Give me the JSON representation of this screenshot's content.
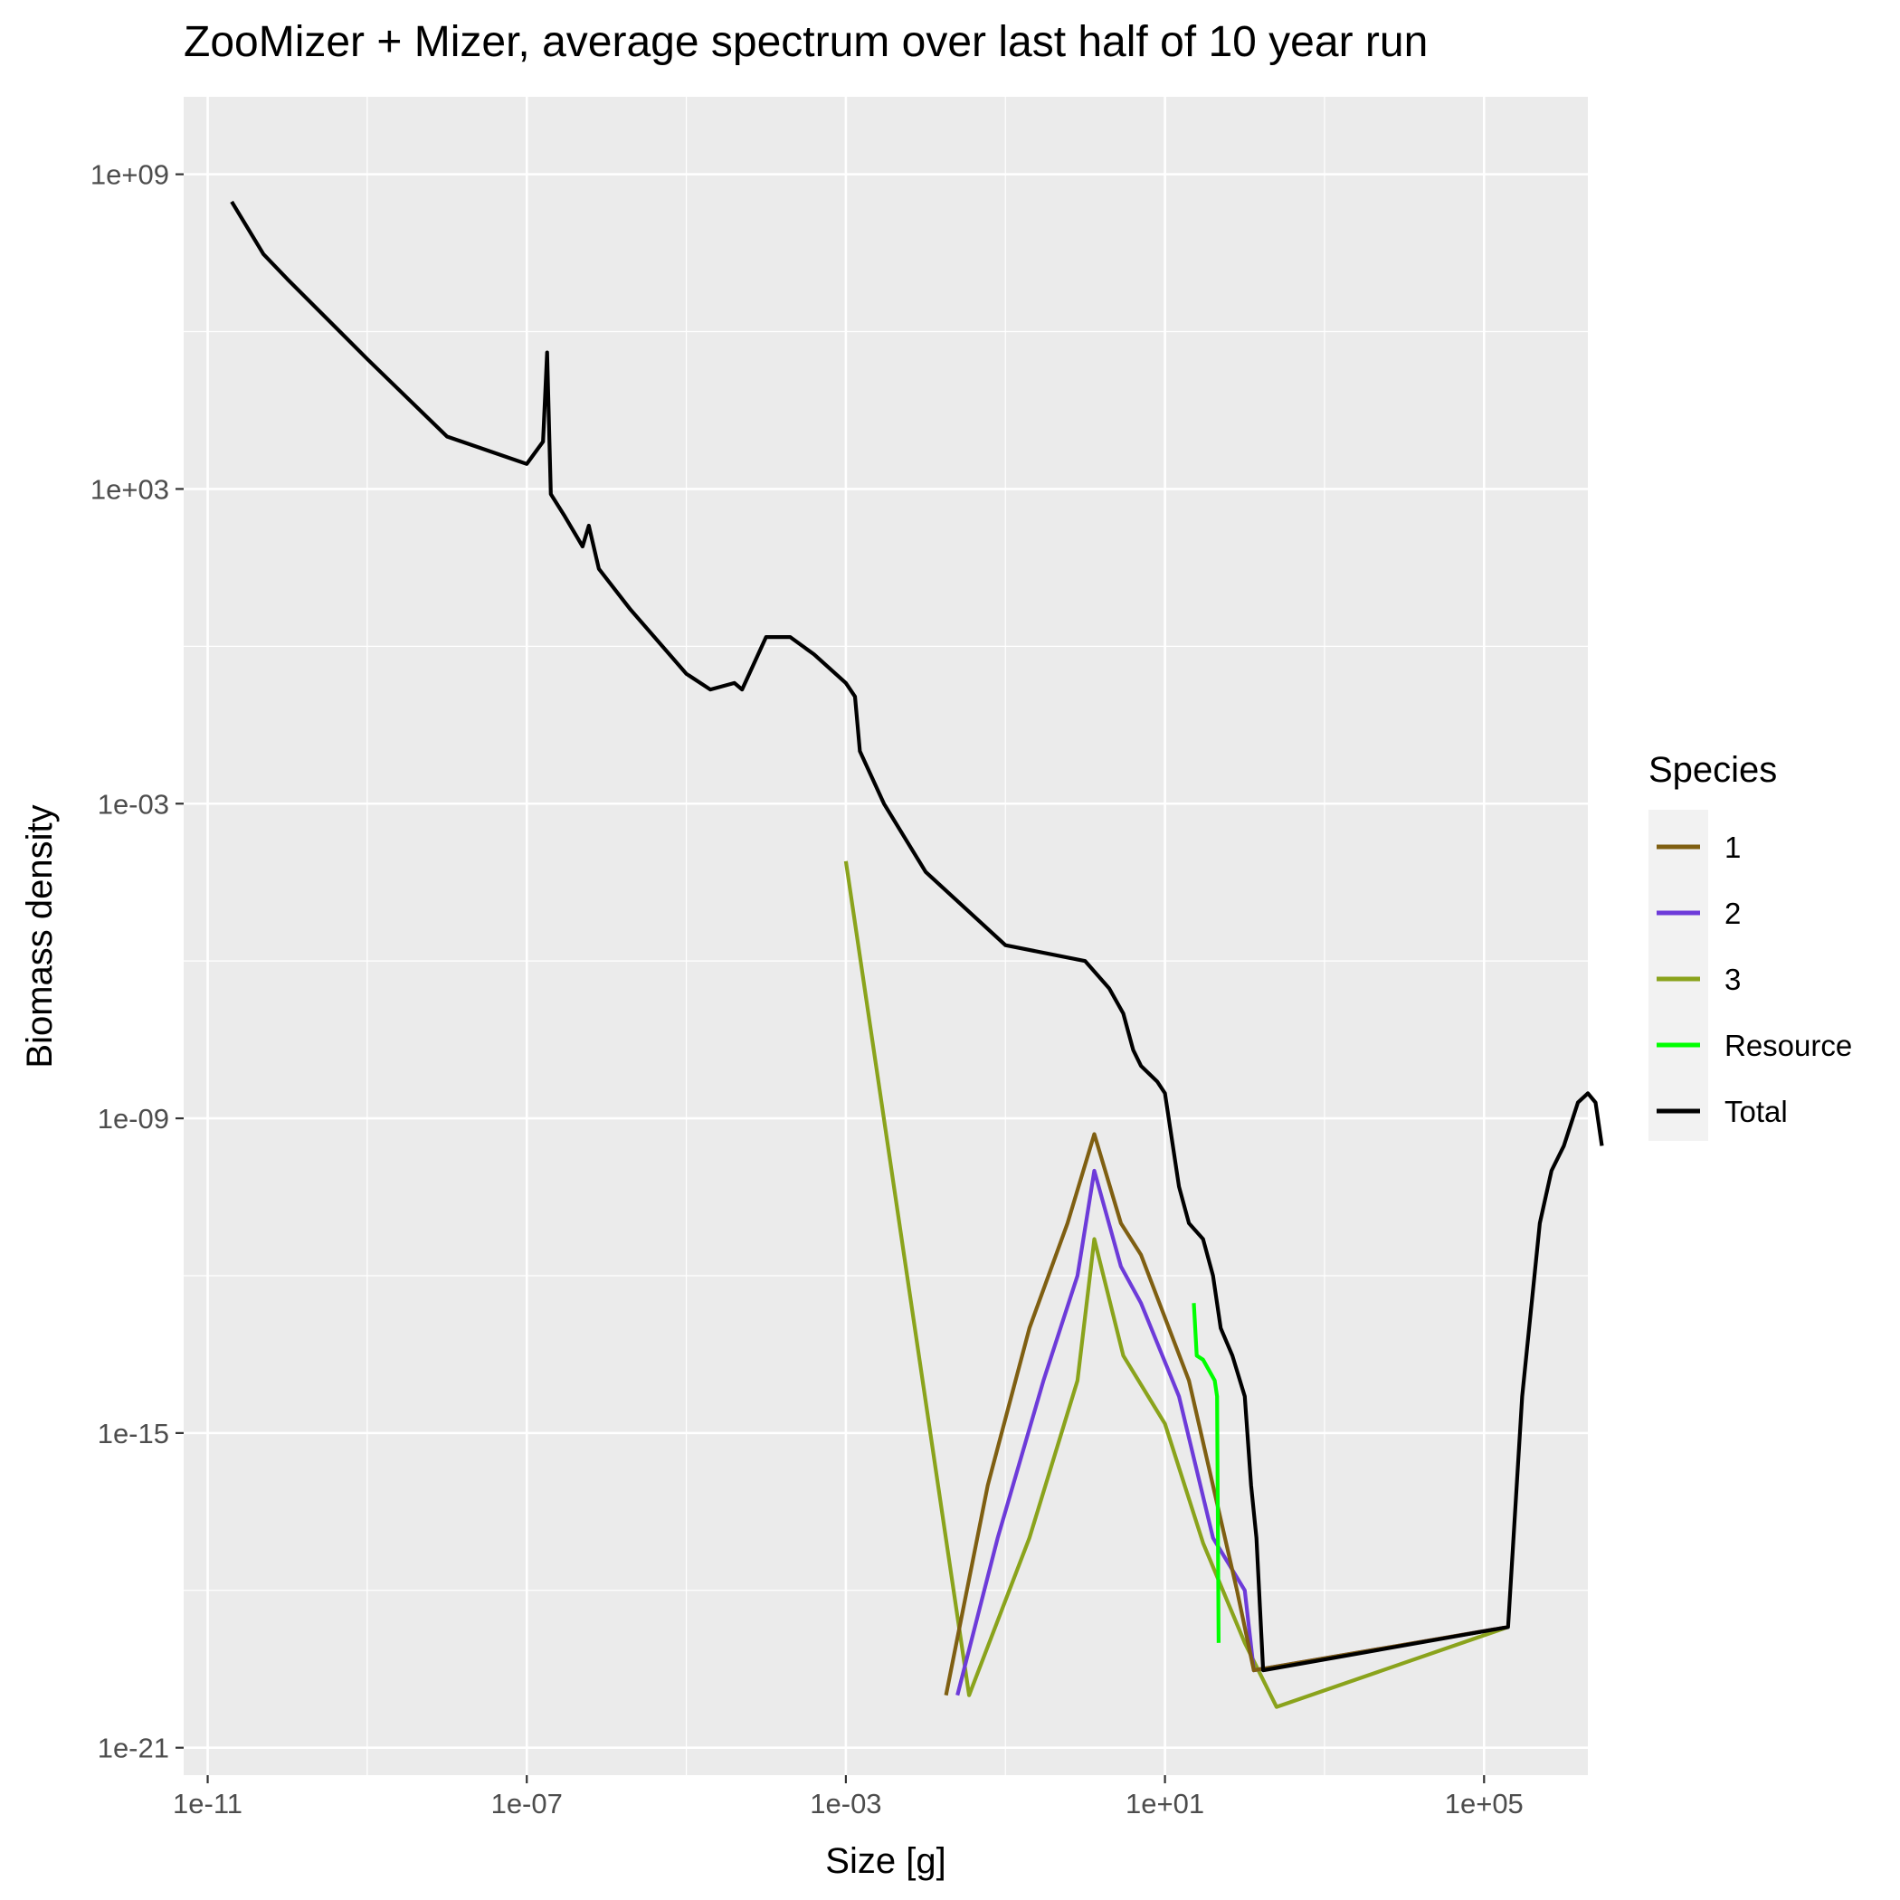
{
  "chart_data": {
    "type": "line",
    "title": "ZooMizer + Mizer, average spectrum over last half of 10 year run",
    "xlabel": "Size [g]",
    "ylabel": "Biomass density",
    "x_scale": "log10",
    "y_scale": "log10",
    "xlim": [
      5e-12,
      2000000.0
    ],
    "ylim": [
      3e-22,
      30000000000.0
    ],
    "x_ticks": [
      1e-11,
      1e-07,
      0.001,
      10,
      100000.0
    ],
    "x_tick_labels": [
      "1e-11",
      "1e-07",
      "1e-03",
      "1e+01",
      "1e+05"
    ],
    "y_ticks": [
      1000000000.0,
      1000.0,
      0.001,
      1e-09,
      1e-15,
      1e-21
    ],
    "y_tick_labels": [
      "1e+09",
      "1e+03",
      "1e-03",
      "1e-09",
      "1e-15",
      "1e-21"
    ],
    "grid": true,
    "legend": {
      "title": "Species",
      "position": "right"
    },
    "series": [
      {
        "name": "1",
        "color": "#7f5f12",
        "points": [
          [
            0.018,
            1e-20
          ],
          [
            0.06,
            1e-16
          ],
          [
            0.2,
            1e-13
          ],
          [
            0.6,
            1e-11
          ],
          [
            1.3,
            5e-10
          ],
          [
            2.8,
            1e-11
          ],
          [
            5,
            2.5e-12
          ],
          [
            20,
            1e-14
          ],
          [
            80,
            1e-18
          ],
          [
            130,
            3e-20
          ],
          [
            200000.0,
            2e-19
          ]
        ]
      },
      {
        "name": "2",
        "color": "#6d3bd9",
        "points": [
          [
            0.025,
            1e-20
          ],
          [
            0.08,
            1e-17
          ],
          [
            0.3,
            1e-14
          ],
          [
            0.8,
            1e-12
          ],
          [
            1.3,
            1e-10
          ],
          [
            2.8,
            1.5e-12
          ],
          [
            5,
            3e-13
          ],
          [
            15,
            5e-15
          ],
          [
            40,
            1e-17
          ],
          [
            100,
            1e-18
          ],
          [
            130,
            3e-20
          ],
          [
            200000.0,
            2e-19
          ]
        ]
      },
      {
        "name": "3",
        "color": "#8aa31c",
        "points": [
          [
            0.001,
            8e-05
          ],
          [
            0.035,
            1e-20
          ],
          [
            0.2,
            1e-17
          ],
          [
            0.8,
            1e-14
          ],
          [
            1.3,
            5e-12
          ],
          [
            3,
            3e-14
          ],
          [
            10,
            1.5e-15
          ],
          [
            30,
            8e-18
          ],
          [
            100,
            1e-19
          ],
          [
            250,
            6e-21
          ],
          [
            200000.0,
            2e-19
          ]
        ]
      },
      {
        "name": "Resource",
        "color": "#00ff00",
        "points": [
          [
            23,
            3e-13
          ],
          [
            25,
            3e-14
          ],
          [
            30,
            2.5e-14
          ],
          [
            42,
            1e-14
          ],
          [
            45,
            5e-15
          ],
          [
            47,
            1e-19
          ]
        ]
      },
      {
        "name": "Total",
        "color": "#000000",
        "points": [
          [
            2e-11,
            300000000.0
          ],
          [
            5e-11,
            30000000.0
          ],
          [
            1e-10,
            10000000.0
          ],
          [
            1e-09,
            300000.0
          ],
          [
            1e-08,
            10000.0
          ],
          [
            1e-07,
            3000.0
          ],
          [
            1.6e-07,
            8000.0
          ],
          [
            1.8e-07,
            400000.0
          ],
          [
            2e-07,
            800.0
          ],
          [
            3e-07,
            300.0
          ],
          [
            5e-07,
            80
          ],
          [
            6e-07,
            200
          ],
          [
            8e-07,
            30
          ],
          [
            2e-06,
            5
          ],
          [
            1e-05,
            0.3
          ],
          [
            2e-05,
            0.15
          ],
          [
            4e-05,
            0.2
          ],
          [
            5e-05,
            0.15
          ],
          [
            0.0001,
            1.5
          ],
          [
            0.0002,
            1.5
          ],
          [
            0.0004,
            0.7
          ],
          [
            0.001,
            0.2
          ],
          [
            0.0013,
            0.11
          ],
          [
            0.0015,
            0.01
          ],
          [
            0.003,
            0.001
          ],
          [
            0.01,
            5e-05
          ],
          [
            0.1,
            2e-06
          ],
          [
            1,
            1e-06
          ],
          [
            2,
            3e-07
          ],
          [
            3,
            1e-07
          ],
          [
            4,
            2e-08
          ],
          [
            5,
            1e-08
          ],
          [
            8,
            5e-09
          ],
          [
            10,
            3e-09
          ],
          [
            15,
            5e-11
          ],
          [
            20,
            1e-11
          ],
          [
            30,
            5e-12
          ],
          [
            40,
            1e-12
          ],
          [
            50,
            1e-13
          ],
          [
            70,
            3e-14
          ],
          [
            100,
            5e-15
          ],
          [
            120,
            1e-16
          ],
          [
            140,
            1e-17
          ],
          [
            170,
            3e-20
          ],
          [
            200000.0,
            2e-19
          ],
          [
            300000.0,
            5e-15
          ],
          [
            500000.0,
            1e-11
          ],
          [
            700000.0,
            1e-10
          ],
          [
            1000000.0,
            3e-10
          ],
          [
            1500000.0,
            2e-09
          ],
          [
            2000000.0,
            3e-09
          ],
          [
            2500000.0,
            2e-09
          ],
          [
            3000000.0,
            3e-10
          ]
        ]
      }
    ]
  }
}
